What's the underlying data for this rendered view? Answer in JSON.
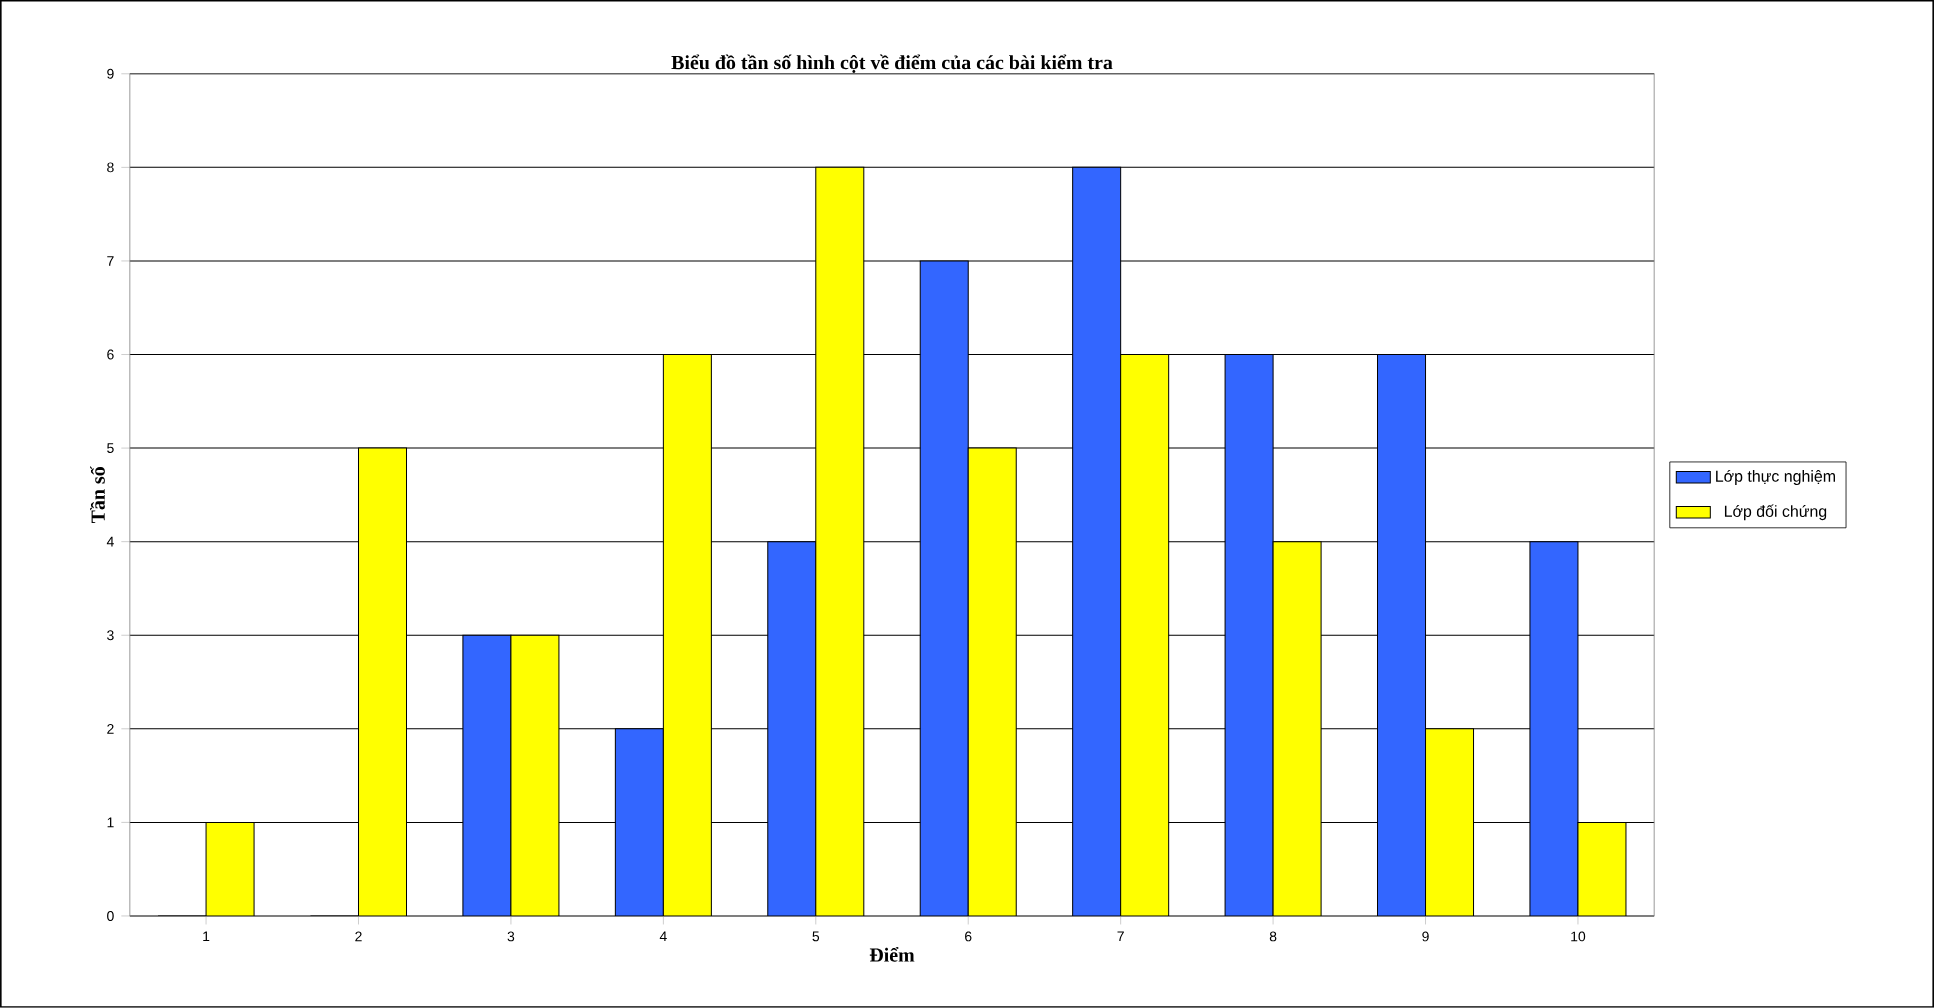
{
  "chart_data": {
    "type": "bar",
    "title": "Biểu đồ tần số hình cột về điểm của các bài kiểm tra",
    "xlabel": "Điểm",
    "ylabel": "Tần số",
    "categories": [
      "1",
      "2",
      "3",
      "4",
      "5",
      "6",
      "7",
      "8",
      "9",
      "10"
    ],
    "series": [
      {
        "name": "Lớp thực nghiệm",
        "color": "#3366ff",
        "values": [
          0,
          0,
          3,
          2,
          4,
          7,
          8,
          6,
          6,
          4
        ]
      },
      {
        "name": "Lớp đối chứng",
        "color": "#ffff00",
        "values": [
          1,
          5,
          3,
          6,
          8,
          5,
          6,
          4,
          2,
          1
        ]
      }
    ],
    "ylim": [
      0,
      9
    ],
    "yticks": [
      0,
      1,
      2,
      3,
      4,
      5,
      6,
      7,
      8,
      9
    ],
    "grid": "y",
    "legend": "right"
  }
}
